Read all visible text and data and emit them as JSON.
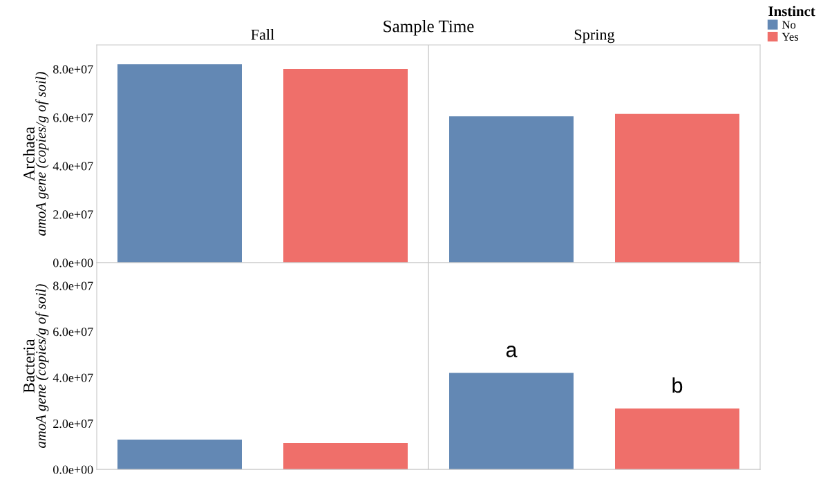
{
  "chart_data": [
    {
      "type": "bar",
      "xlabel": "Sample Time",
      "ylabel": "Archaea\namoA gene (copies/g of soil)",
      "categories": [
        "Fall",
        "Spring"
      ],
      "legend": "right",
      "legend_title": "Instinct",
      "series": [
        {
          "name": "No",
          "color": "#6388b4",
          "values": [
            82000000,
            60500000
          ]
        },
        {
          "name": "Yes",
          "color": "#ef6f6a",
          "values": [
            80000000,
            61500000
          ]
        }
      ],
      "ylim": [
        0,
        90000000
      ],
      "yticks": [
        {
          "value": 0,
          "label": "0.0e+00"
        },
        {
          "value": 20000000,
          "label": "2.0e+07"
        },
        {
          "value": 40000000,
          "label": "4.0e+07"
        },
        {
          "value": 60000000,
          "label": "6.0e+07"
        },
        {
          "value": 80000000,
          "label": "8.0e+07"
        }
      ]
    },
    {
      "type": "bar",
      "ylabel": "Bacteria\namoA gene (copies/g of soil)",
      "categories": [
        null,
        null
      ],
      "tick_labels": "y",
      "annotations": [
        "a",
        "b"
      ],
      "series": [
        {
          "color": "#6388b4",
          "values": [
            13000000,
            42000000
          ]
        },
        {
          "color": "#ef6f6a",
          "values": [
            11500000,
            26500000
          ]
        }
      ],
      "ylim": [
        0,
        90000000
      ],
      "yticks": [
        {
          "value": 0,
          "label": "0.0e+00"
        },
        {
          "value": 20000000,
          "label": "2.0e+07"
        },
        {
          "value": 40000000,
          "label": "4.0e+07"
        },
        {
          "value": 60000000,
          "label": "6.0e+07"
        },
        {
          "value": 80000000,
          "label": "8.0e+07"
        }
      ]
    }
  ]
}
